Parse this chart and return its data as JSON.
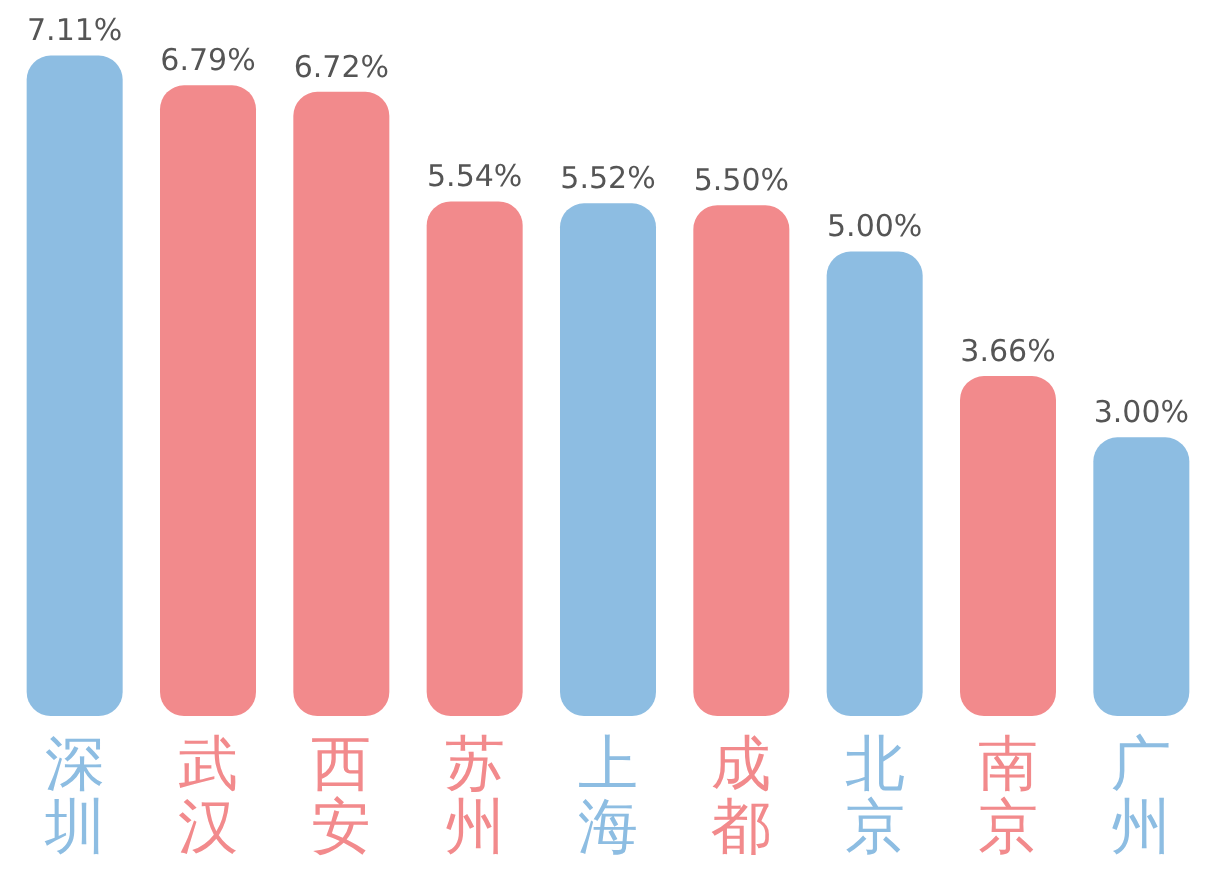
{
  "chart_data": {
    "type": "bar",
    "categories": [
      "深圳",
      "武汉",
      "西安",
      "苏州",
      "上海",
      "成都",
      "北京",
      "南京",
      "广州"
    ],
    "values": [
      7.11,
      6.79,
      6.72,
      5.54,
      5.52,
      5.5,
      5.0,
      3.66,
      3.0
    ],
    "value_labels": [
      "7.11%",
      "6.79%",
      "6.72%",
      "5.54%",
      "5.52%",
      "5.50%",
      "5.00%",
      "3.66%",
      "3.00%"
    ],
    "colors": [
      "#8dbde2",
      "#f28a8c",
      "#f28a8c",
      "#f28a8c",
      "#8dbde2",
      "#f28a8c",
      "#8dbde2",
      "#f28a8c",
      "#8dbde2"
    ],
    "grid": false,
    "legend": false
  }
}
